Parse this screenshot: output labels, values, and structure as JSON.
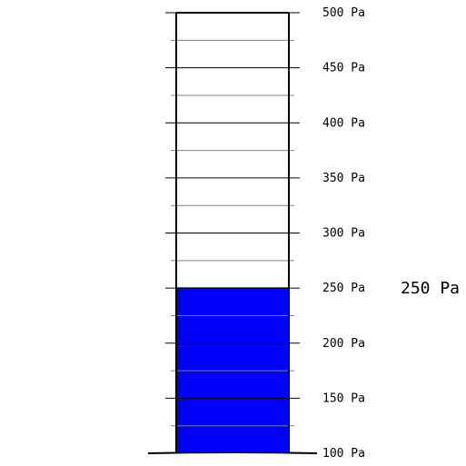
{
  "gauge": {
    "unit": "Pa",
    "min": 100,
    "max": 500,
    "value": 250,
    "readout": "250 Pa",
    "major_ticks": [
      {
        "value": 100,
        "label": "100 Pa"
      },
      {
        "value": 150,
        "label": "150 Pa"
      },
      {
        "value": 200,
        "label": "200 Pa"
      },
      {
        "value": 250,
        "label": "250 Pa"
      },
      {
        "value": 300,
        "label": "300 Pa"
      },
      {
        "value": 350,
        "label": "350 Pa"
      },
      {
        "value": 400,
        "label": "400 Pa"
      },
      {
        "value": 450,
        "label": "450 Pa"
      },
      {
        "value": 500,
        "label": "500 Pa"
      }
    ],
    "minor_ticks": [
      125,
      175,
      225,
      275,
      325,
      375,
      425,
      475
    ],
    "colors": {
      "fill": "#0000ff",
      "outline": "#000000",
      "minor_tick": "#808080",
      "background": "#ffffff"
    }
  }
}
